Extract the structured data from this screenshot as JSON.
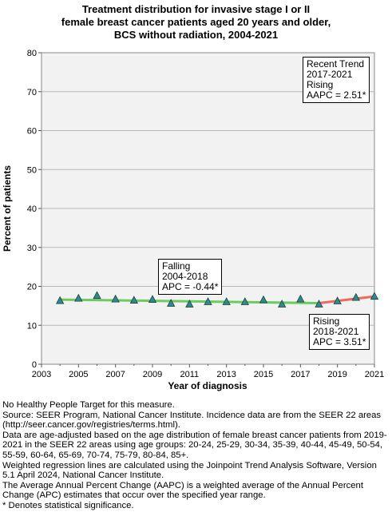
{
  "chart_data": {
    "type": "line",
    "title_lines": [
      "Treatment distribution for invasive stage I or II",
      "female breast cancer patients aged 20 years and older,",
      "BCS without radiation,  2004-2021"
    ],
    "xlabel": "Year of diagnosis",
    "ylabel": "Percent of patients",
    "xlim": [
      2003,
      2021
    ],
    "ylim": [
      0,
      80
    ],
    "x_ticks": [
      2003,
      2005,
      2007,
      2009,
      2011,
      2013,
      2015,
      2017,
      2019,
      2021
    ],
    "y_ticks": [
      0,
      10,
      20,
      30,
      40,
      50,
      60,
      70,
      80
    ],
    "grid": "horizontal",
    "observed": {
      "x": [
        2004,
        2005,
        2006,
        2007,
        2008,
        2009,
        2010,
        2011,
        2012,
        2013,
        2014,
        2015,
        2016,
        2017,
        2018,
        2019,
        2020,
        2021
      ],
      "y": [
        16.3,
        16.9,
        17.6,
        16.7,
        16.4,
        16.6,
        15.6,
        15.4,
        16.0,
        16.0,
        16.0,
        16.5,
        15.4,
        16.7,
        15.4,
        16.2,
        17.1,
        17.4
      ],
      "marker": "triangle",
      "color": "#2e8b8b"
    },
    "trend_segments": [
      {
        "x": [
          2004,
          2018
        ],
        "y": [
          16.6,
          15.7
        ],
        "color": "#6ccb5f"
      },
      {
        "x": [
          2018,
          2021
        ],
        "y": [
          15.7,
          17.4
        ],
        "color": "#ee6a5a"
      }
    ],
    "annotations": [
      {
        "lines": [
          "Recent Trend",
          "2017-2021",
          "Rising",
          "AAPC =  2.51*"
        ]
      },
      {
        "lines": [
          "Falling",
          "2004-2018",
          "APC = -0.44*"
        ]
      },
      {
        "lines": [
          "Rising",
          "2018-2021",
          "APC =  3.51*"
        ]
      }
    ]
  },
  "footnotes": [
    "No Healthy People Target for this measure.",
    "Source: SEER Program, National Cancer Institute. Incidence data are from the SEER 22 areas (http://seer.cancer.gov/registries/terms.html).",
    "Data are age-adjusted based on the age distribution of female breast cancer patients from 2019-2021 in the SEER 22 areas using age groups: 20-24, 25-29, 30-34, 35-39, 40-44, 45-49, 50-54, 55-59, 60-64, 65-69, 70-74, 75-79, 80-84, 85+.",
    "Weighted regression lines are calculated using the Joinpoint Trend Analysis Software, Version 5.1 April 2024, National Cancer Institute.",
    "The Average Annual Percent Change (AAPC) is a weighted average of the Annual Percent Change (APC) estimates that occur over the specified year range.",
    "* Denotes statistical significance."
  ]
}
